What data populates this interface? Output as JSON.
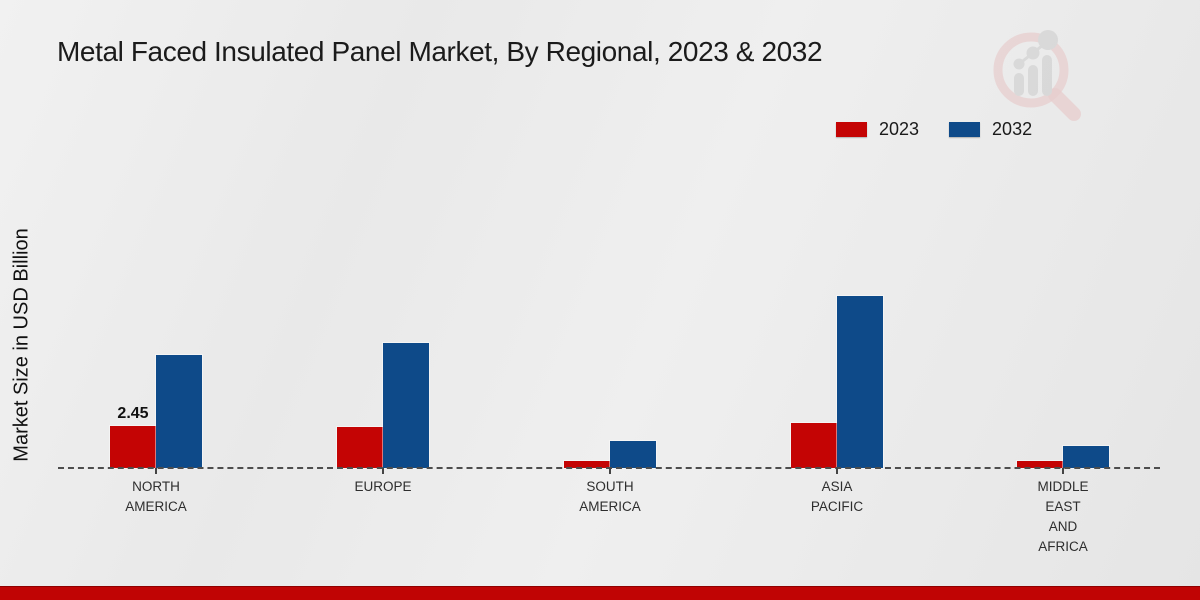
{
  "chart_data": {
    "type": "bar",
    "title": "Metal Faced Insulated Panel Market, By Regional, 2023 & 2032",
    "ylabel": "Market Size in USD Billion",
    "xlabel": "",
    "categories": [
      "North America",
      "Europe",
      "South America",
      "Asia Pacific",
      "Middle East and Africa"
    ],
    "category_display": [
      [
        "NORTH",
        "AMERICA"
      ],
      [
        "EUROPE"
      ],
      [
        "SOUTH",
        "AMERICA"
      ],
      [
        "ASIA",
        "PACIFIC"
      ],
      [
        "MIDDLE",
        "EAST",
        "AND",
        "AFRICA"
      ]
    ],
    "series": [
      {
        "name": "2023",
        "color": "#C40404",
        "values": [
          2.45,
          2.4,
          0.38,
          2.6,
          0.42
        ]
      },
      {
        "name": "2032",
        "color": "#0E4A89",
        "values": [
          6.6,
          7.3,
          1.6,
          10.05,
          1.3
        ]
      }
    ],
    "data_labels": [
      {
        "series": "2023",
        "category": "North America",
        "text": "2.45"
      }
    ],
    "ylim": [
      0,
      10.5
    ],
    "grid": false,
    "baseline_style": "dashed",
    "legend_position": "top-right"
  },
  "footer": {
    "accent_color": "#C00404"
  },
  "logo": {
    "name": "market-research-logo"
  }
}
